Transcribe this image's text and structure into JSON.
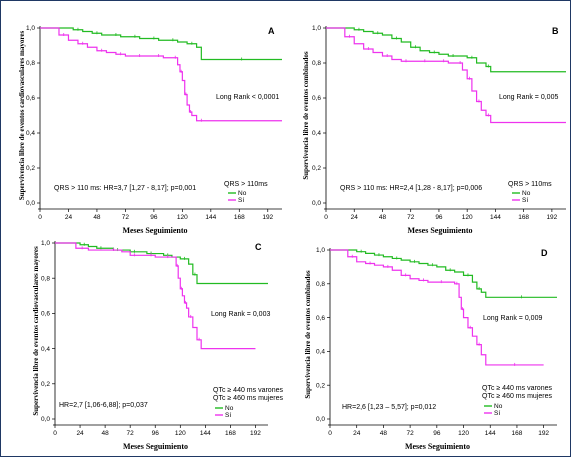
{
  "colors": {
    "no": "#22bb22",
    "si": "#ee33ee"
  },
  "chart_data": [
    {
      "type": "line",
      "panel_letter": "A",
      "ylabel": "Supervivencia libre de eventos cardiovasculares mayores",
      "xlabel": "Meses Seguimiento",
      "x_ticks": [
        "0",
        "24",
        "48",
        "72",
        "96",
        "120",
        "144",
        "168",
        "192"
      ],
      "y_ticks": [
        "0,0",
        "0,2",
        "0,4",
        "0,6",
        "0,8",
        "1,0"
      ],
      "xlim": [
        0,
        204
      ],
      "ylim": [
        0,
        1
      ],
      "annotations": [
        "Long Rank < 0,0001",
        "QRS > 110 ms: HR=3,7 [1,27 -  8,17]; p=0,001"
      ],
      "legend_title": "QRS > 110ms",
      "series": [
        {
          "name": "No",
          "x": [
            0,
            20,
            28,
            36,
            44,
            52,
            60,
            68,
            76,
            84,
            92,
            100,
            108,
            116,
            124,
            132,
            136,
            204
          ],
          "y": [
            1,
            1,
            0.99,
            0.98,
            0.97,
            0.96,
            0.96,
            0.95,
            0.95,
            0.94,
            0.94,
            0.93,
            0.93,
            0.92,
            0.91,
            0.89,
            0.82,
            0.82
          ]
        },
        {
          "name": "Sí",
          "x": [
            0,
            10,
            16,
            24,
            32,
            40,
            48,
            56,
            64,
            72,
            80,
            88,
            96,
            104,
            112,
            116,
            118,
            120,
            122,
            124,
            126,
            128,
            132,
            140,
            204
          ],
          "y": [
            1,
            1,
            0.96,
            0.93,
            0.91,
            0.89,
            0.87,
            0.86,
            0.85,
            0.84,
            0.84,
            0.84,
            0.84,
            0.83,
            0.83,
            0.79,
            0.75,
            0.7,
            0.62,
            0.56,
            0.52,
            0.5,
            0.47,
            0.47,
            0.47
          ]
        }
      ]
    },
    {
      "type": "line",
      "panel_letter": "B",
      "ylabel": "Supervivencia libre de eventos combinados",
      "xlabel": "Meses Seguimiento",
      "x_ticks": [
        "0",
        "24",
        "48",
        "72",
        "96",
        "120",
        "144",
        "168",
        "192"
      ],
      "y_ticks": [
        "0,0",
        "0,2",
        "0,4",
        "0,6",
        "0,8",
        "1,0"
      ],
      "xlim": [
        0,
        204
      ],
      "ylim": [
        0,
        1
      ],
      "annotations": [
        "Long Rank = 0,005",
        "QRS > 110 ms: HR=2,4 [1,28 -  8,17]; p=0,006"
      ],
      "legend_title": "QRS > 110ms",
      "series": [
        {
          "name": "No",
          "x": [
            0,
            16,
            24,
            32,
            40,
            48,
            56,
            64,
            72,
            80,
            88,
            96,
            104,
            112,
            120,
            128,
            136,
            140,
            204
          ],
          "y": [
            1,
            1,
            0.99,
            0.98,
            0.97,
            0.96,
            0.94,
            0.92,
            0.89,
            0.87,
            0.86,
            0.85,
            0.84,
            0.84,
            0.83,
            0.8,
            0.78,
            0.75,
            0.75
          ]
        },
        {
          "name": "Sí",
          "x": [
            0,
            8,
            16,
            24,
            32,
            40,
            48,
            56,
            64,
            72,
            80,
            88,
            96,
            104,
            112,
            116,
            120,
            124,
            128,
            132,
            136,
            140,
            204
          ],
          "y": [
            1,
            1,
            0.95,
            0.91,
            0.88,
            0.86,
            0.84,
            0.82,
            0.81,
            0.81,
            0.81,
            0.81,
            0.81,
            0.8,
            0.8,
            0.76,
            0.71,
            0.64,
            0.58,
            0.53,
            0.5,
            0.46,
            0.46
          ]
        }
      ]
    },
    {
      "type": "line",
      "panel_letter": "C",
      "ylabel": "Supervivencia libre de eventos cardiovasculares mayores",
      "xlabel": "Meses Seguimiento",
      "x_ticks": [
        "0",
        "24",
        "48",
        "72",
        "96",
        "120",
        "144",
        "168",
        "192"
      ],
      "y_ticks": [
        "0,0",
        "0,2",
        "0,4",
        "0,6",
        "0,8",
        "1,0"
      ],
      "xlim": [
        0,
        204
      ],
      "ylim": [
        0,
        1
      ],
      "annotations": [
        "Long Rank = 0,003",
        "HR=2,7 [1,06-6,88]; p=0,037"
      ],
      "legend_lines": [
        "QTc ≥ 440 ms varones",
        "QTc ≥ 460 ms mujeres"
      ],
      "series": [
        {
          "name": "No",
          "x": [
            0,
            16,
            24,
            32,
            40,
            48,
            56,
            64,
            72,
            80,
            88,
            96,
            104,
            112,
            120,
            128,
            132,
            136,
            204
          ],
          "y": [
            1,
            1,
            0.99,
            0.98,
            0.97,
            0.97,
            0.96,
            0.96,
            0.95,
            0.95,
            0.94,
            0.94,
            0.93,
            0.92,
            0.91,
            0.88,
            0.82,
            0.77,
            0.77
          ]
        },
        {
          "name": "Sí",
          "x": [
            0,
            12,
            20,
            32,
            48,
            64,
            72,
            80,
            88,
            96,
            104,
            112,
            116,
            118,
            120,
            122,
            124,
            126,
            128,
            132,
            136,
            140,
            192
          ],
          "y": [
            1,
            1,
            0.97,
            0.96,
            0.96,
            0.95,
            0.93,
            0.93,
            0.93,
            0.92,
            0.92,
            0.92,
            0.87,
            0.8,
            0.74,
            0.7,
            0.66,
            0.63,
            0.58,
            0.52,
            0.45,
            0.4,
            0.4
          ]
        }
      ]
    },
    {
      "type": "line",
      "panel_letter": "D",
      "ylabel": "Supervivencia libre de eventos combinados",
      "xlabel": "Meses Seguimiento",
      "x_ticks": [
        "0",
        "24",
        "48",
        "72",
        "96",
        "120",
        "144",
        "168",
        "192"
      ],
      "y_ticks": [
        "0,0",
        "0,2",
        "0,4",
        "0,6",
        "0,8",
        "1,0"
      ],
      "xlim": [
        0,
        204
      ],
      "ylim": [
        0,
        1
      ],
      "annotations": [
        "Long Rank = 0,009",
        "HR=2,6 [1,23 – 5,57]; p=0,012"
      ],
      "legend_lines": [
        "QTc ≥ 440 ms varones",
        "QTc ≥ 460 ms mujeres"
      ],
      "series": [
        {
          "name": "No",
          "x": [
            0,
            16,
            24,
            32,
            40,
            48,
            56,
            64,
            72,
            80,
            88,
            96,
            104,
            112,
            120,
            128,
            132,
            136,
            140,
            204
          ],
          "y": [
            1,
            1,
            0.99,
            0.98,
            0.97,
            0.96,
            0.95,
            0.94,
            0.93,
            0.92,
            0.91,
            0.9,
            0.88,
            0.87,
            0.85,
            0.81,
            0.77,
            0.75,
            0.72,
            0.72
          ]
        },
        {
          "name": "Sí",
          "x": [
            0,
            8,
            16,
            24,
            32,
            40,
            48,
            56,
            64,
            72,
            80,
            88,
            96,
            104,
            112,
            116,
            118,
            120,
            124,
            128,
            132,
            136,
            140,
            192
          ],
          "y": [
            1,
            1,
            0.96,
            0.93,
            0.92,
            0.91,
            0.9,
            0.88,
            0.85,
            0.83,
            0.82,
            0.81,
            0.81,
            0.81,
            0.8,
            0.72,
            0.65,
            0.6,
            0.54,
            0.49,
            0.44,
            0.38,
            0.32,
            0.32
          ]
        }
      ]
    }
  ]
}
